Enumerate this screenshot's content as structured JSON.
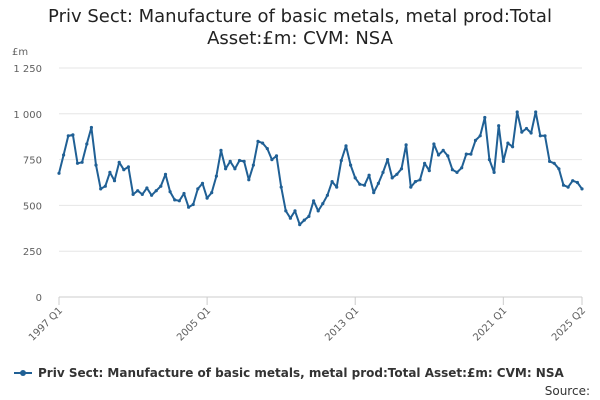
{
  "chart_data": {
    "type": "line",
    "title_line1": "Priv Sect: Manufacture of basic metals, metal prod:Total",
    "title_line2": "Asset:£m: CVM: NSA",
    "ylabel": "£m",
    "ylim": [
      0,
      1250
    ],
    "yticks": [
      0,
      250,
      500,
      750,
      1000,
      1250
    ],
    "ytick_labels": [
      "0",
      "250",
      "500",
      "750",
      "1 000",
      "1 250"
    ],
    "xtick_labels": [
      "1997 Q1",
      "2005 Q1",
      "2013 Q1",
      "2021 Q1",
      "2025 Q2"
    ],
    "xtick_index": [
      0,
      32,
      64,
      96,
      113
    ],
    "grid": true,
    "legend_position": "bottom",
    "source_label": "Source:",
    "series": [
      {
        "name": "Priv Sect: Manufacture of basic metals, metal prod:Total Asset:£m: CVM: NSA",
        "color": "#206095",
        "x_start": "1997 Q1",
        "frequency": "quarterly",
        "values": [
          675,
          775,
          880,
          885,
          730,
          735,
          835,
          925,
          720,
          590,
          605,
          680,
          635,
          735,
          695,
          710,
          560,
          580,
          560,
          595,
          555,
          580,
          605,
          670,
          575,
          530,
          525,
          565,
          490,
          505,
          590,
          620,
          540,
          570,
          660,
          800,
          700,
          740,
          700,
          745,
          740,
          640,
          720,
          850,
          840,
          810,
          750,
          770,
          600,
          470,
          430,
          470,
          395,
          420,
          440,
          525,
          470,
          510,
          555,
          630,
          600,
          745,
          825,
          720,
          650,
          615,
          610,
          665,
          570,
          620,
          680,
          750,
          650,
          670,
          700,
          830,
          600,
          630,
          640,
          730,
          690,
          835,
          775,
          800,
          770,
          695,
          680,
          705,
          780,
          780,
          855,
          880,
          980,
          750,
          680,
          935,
          740,
          840,
          820,
          1010,
          900,
          920,
          895,
          1010,
          880,
          880,
          740,
          730,
          700,
          610,
          600,
          635,
          625,
          590
        ]
      }
    ]
  }
}
